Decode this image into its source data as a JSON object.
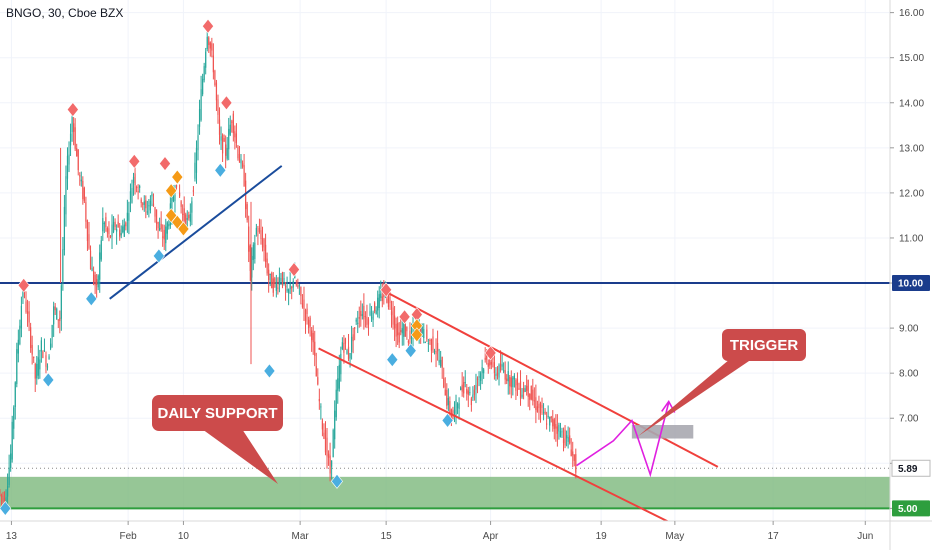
{
  "chart_data": {
    "type": "candlestick",
    "title": "BNGO, 30, Cboe BZX",
    "y_axis": {
      "side": "right",
      "range": [
        4.72,
        16.28
      ],
      "ticks": [
        "16.00",
        "15.00",
        "14.00",
        "13.00",
        "12.00",
        "11.00",
        "10.00",
        "9.00",
        "8.00",
        "7.00",
        "6.00",
        "5.00"
      ]
    },
    "x_axis": {
      "labels": [
        "13",
        "Feb",
        "10",
        "Mar",
        "15",
        "Apr",
        "19",
        "May",
        "17",
        "Jun"
      ],
      "label_dates": [
        "2021-01-13",
        "2021-02-01",
        "2021-02-10",
        "2021-03-01",
        "2021-03-15",
        "2021-04-01",
        "2021-04-19",
        "2021-05-01",
        "2021-05-17",
        "2021-06-01"
      ]
    },
    "price_path": [
      [
        "2021-01-11",
        5.4
      ],
      [
        "2021-01-12",
        5.1
      ],
      [
        "2021-01-13",
        6.2
      ],
      [
        "2021-01-14",
        8.4
      ],
      [
        "2021-01-15",
        9.9
      ],
      [
        "2021-01-16",
        9.0
      ],
      [
        "2021-01-17",
        7.9
      ],
      [
        "2021-01-18",
        8.6
      ],
      [
        "2021-01-19",
        8.2
      ],
      [
        "2021-01-20",
        9.4
      ],
      [
        "2021-01-21",
        9.2
      ],
      [
        "2021-01-22",
        12.3
      ],
      [
        "2021-01-23",
        13.7
      ],
      [
        "2021-01-24",
        12.5
      ],
      [
        "2021-01-25",
        11.8
      ],
      [
        "2021-01-26",
        10.4
      ],
      [
        "2021-01-27",
        9.8
      ],
      [
        "2021-01-28",
        11.4
      ],
      [
        "2021-01-29",
        11.0
      ],
      [
        "2021-01-30",
        11.3
      ],
      [
        "2021-01-31",
        11.1
      ],
      [
        "2021-02-01",
        11.5
      ],
      [
        "2021-02-02",
        12.4
      ],
      [
        "2021-02-03",
        12.0
      ],
      [
        "2021-02-04",
        11.6
      ],
      [
        "2021-02-05",
        11.9
      ],
      [
        "2021-02-06",
        11.2
      ],
      [
        "2021-02-07",
        11.0
      ],
      [
        "2021-02-08",
        11.6
      ],
      [
        "2021-02-09",
        12.3
      ],
      [
        "2021-02-10",
        11.5
      ],
      [
        "2021-02-11",
        11.3
      ],
      [
        "2021-02-12",
        12.5
      ],
      [
        "2021-02-13",
        14.2
      ],
      [
        "2021-02-14",
        15.6
      ],
      [
        "2021-02-15",
        14.8
      ],
      [
        "2021-02-16",
        13.2
      ],
      [
        "2021-02-17",
        12.9
      ],
      [
        "2021-02-18",
        13.7
      ],
      [
        "2021-02-19",
        12.9
      ],
      [
        "2021-02-20",
        12.3
      ],
      [
        "2021-02-21",
        10.2
      ],
      [
        "2021-02-22",
        11.2
      ],
      [
        "2021-02-23",
        10.9
      ],
      [
        "2021-02-24",
        10.1
      ],
      [
        "2021-02-25",
        9.9
      ],
      [
        "2021-02-26",
        10.2
      ],
      [
        "2021-02-27",
        9.7
      ],
      [
        "2021-02-28",
        10.1
      ],
      [
        "2021-03-01",
        9.8
      ],
      [
        "2021-03-02",
        9.3
      ],
      [
        "2021-03-03",
        8.9
      ],
      [
        "2021-03-04",
        7.6
      ],
      [
        "2021-03-05",
        6.6
      ],
      [
        "2021-03-06",
        5.8
      ],
      [
        "2021-03-07",
        7.5
      ],
      [
        "2021-03-08",
        8.7
      ],
      [
        "2021-03-09",
        8.4
      ],
      [
        "2021-03-10",
        9.0
      ],
      [
        "2021-03-11",
        9.4
      ],
      [
        "2021-03-12",
        9.2
      ],
      [
        "2021-03-13",
        9.4
      ],
      [
        "2021-03-14",
        9.6
      ],
      [
        "2021-03-15",
        9.8
      ],
      [
        "2021-03-16",
        9.4
      ],
      [
        "2021-03-17",
        8.8
      ],
      [
        "2021-03-18",
        9.0
      ],
      [
        "2021-03-19",
        8.7
      ],
      [
        "2021-03-20",
        9.1
      ],
      [
        "2021-03-21",
        8.9
      ],
      [
        "2021-03-22",
        8.7
      ],
      [
        "2021-03-23",
        8.6
      ],
      [
        "2021-03-24",
        8.2
      ],
      [
        "2021-03-25",
        7.4
      ],
      [
        "2021-03-26",
        7.0
      ],
      [
        "2021-03-27",
        7.5
      ],
      [
        "2021-03-28",
        7.8
      ],
      [
        "2021-03-29",
        7.4
      ],
      [
        "2021-03-30",
        7.9
      ],
      [
        "2021-03-31",
        8.2
      ],
      [
        "2021-04-01",
        8.3
      ],
      [
        "2021-04-02",
        8.0
      ],
      [
        "2021-04-03",
        8.1
      ],
      [
        "2021-04-04",
        7.9
      ],
      [
        "2021-04-05",
        7.8
      ],
      [
        "2021-04-06",
        7.6
      ],
      [
        "2021-04-07",
        7.7
      ],
      [
        "2021-04-08",
        7.4
      ],
      [
        "2021-04-09",
        7.2
      ],
      [
        "2021-04-10",
        7.0
      ],
      [
        "2021-04-11",
        6.9
      ],
      [
        "2021-04-12",
        6.8
      ],
      [
        "2021-04-13",
        6.6
      ],
      [
        "2021-04-14",
        6.45
      ],
      [
        "2021-04-15",
        5.89
      ]
    ],
    "horizontal_line": {
      "value": 10.0,
      "label": "10.00",
      "color": "#1a3c8c"
    },
    "support_zone": {
      "from": 5.0,
      "to": 5.7,
      "color": "#7cb87c",
      "label": "DAILY SUPPORT"
    },
    "support_line": {
      "value": 5.0,
      "label": "5.00",
      "color": "#2e9e3e"
    },
    "last_price": {
      "value": 5.89,
      "label": "5.89"
    },
    "trendline": {
      "color": "#1a4c9c",
      "from": [
        "2021-01-29",
        9.65
      ],
      "to": [
        "2021-02-26",
        12.6
      ]
    },
    "channel": {
      "color": "#f0403c",
      "upper": {
        "from": [
          "2021-03-15",
          9.8
        ],
        "to": [
          "2021-05-08",
          5.92
        ]
      },
      "lower": {
        "from": [
          "2021-03-04",
          8.55
        ],
        "to": [
          "2021-04-30",
          4.7
        ]
      }
    },
    "projection": {
      "color": "#e020e0",
      "path": [
        [
          "2021-04-15",
          5.95
        ],
        [
          "2021-04-21",
          6.5
        ],
        [
          "2021-04-24",
          6.95
        ],
        [
          "2021-04-27",
          5.75
        ],
        [
          "2021-04-30",
          7.35
        ]
      ]
    },
    "trigger_box": {
      "from_date": "2021-04-24",
      "to_date": "2021-05-04",
      "low": 6.55,
      "high": 6.85,
      "color": "#a9a9b0"
    },
    "callouts": {
      "trigger": {
        "text": "TRIGGER"
      },
      "daily_support": {
        "text": "DAILY SUPPORT"
      }
    },
    "markers": [
      {
        "date": "2021-01-15",
        "value": 9.95,
        "kind": "red"
      },
      {
        "date": "2021-01-23",
        "value": 13.85,
        "kind": "red"
      },
      {
        "date": "2021-02-02",
        "value": 12.7,
        "kind": "red"
      },
      {
        "date": "2021-02-07",
        "value": 12.65,
        "kind": "red"
      },
      {
        "date": "2021-02-14",
        "value": 15.7,
        "kind": "red"
      },
      {
        "date": "2021-02-17",
        "value": 14.0,
        "kind": "red"
      },
      {
        "date": "2021-02-28",
        "value": 10.3,
        "kind": "red"
      },
      {
        "date": "2021-03-15",
        "value": 9.85,
        "kind": "red"
      },
      {
        "date": "2021-03-18",
        "value": 9.25,
        "kind": "red"
      },
      {
        "date": "2021-03-20",
        "value": 9.3,
        "kind": "red"
      },
      {
        "date": "2021-04-01",
        "value": 8.45,
        "kind": "red"
      },
      {
        "date": "2021-02-09",
        "value": 12.35,
        "kind": "orange"
      },
      {
        "date": "2021-02-08",
        "value": 12.05,
        "kind": "orange"
      },
      {
        "date": "2021-02-08",
        "value": 11.5,
        "kind": "orange"
      },
      {
        "date": "2021-02-09",
        "value": 11.35,
        "kind": "orange"
      },
      {
        "date": "2021-02-10",
        "value": 11.2,
        "kind": "orange"
      },
      {
        "date": "2021-03-20",
        "value": 9.05,
        "kind": "orange"
      },
      {
        "date": "2021-03-20",
        "value": 8.85,
        "kind": "orange"
      },
      {
        "date": "2021-01-12",
        "value": 5.0,
        "kind": "blue"
      },
      {
        "date": "2021-01-19",
        "value": 7.85,
        "kind": "blue"
      },
      {
        "date": "2021-01-26",
        "value": 9.65,
        "kind": "blue"
      },
      {
        "date": "2021-02-06",
        "value": 10.6,
        "kind": "blue"
      },
      {
        "date": "2021-02-16",
        "value": 12.5,
        "kind": "blue"
      },
      {
        "date": "2021-02-24",
        "value": 8.05,
        "kind": "blue"
      },
      {
        "date": "2021-03-07",
        "value": 5.6,
        "kind": "blue"
      },
      {
        "date": "2021-03-16",
        "value": 8.3,
        "kind": "blue"
      },
      {
        "date": "2021-03-19",
        "value": 8.5,
        "kind": "blue"
      },
      {
        "date": "2021-03-25",
        "value": 6.95,
        "kind": "blue"
      }
    ],
    "colors": {
      "red": "#f26a6a",
      "orange": "#f59a16",
      "blue": "#4aaee0",
      "callout": "#cc4b4b"
    }
  }
}
